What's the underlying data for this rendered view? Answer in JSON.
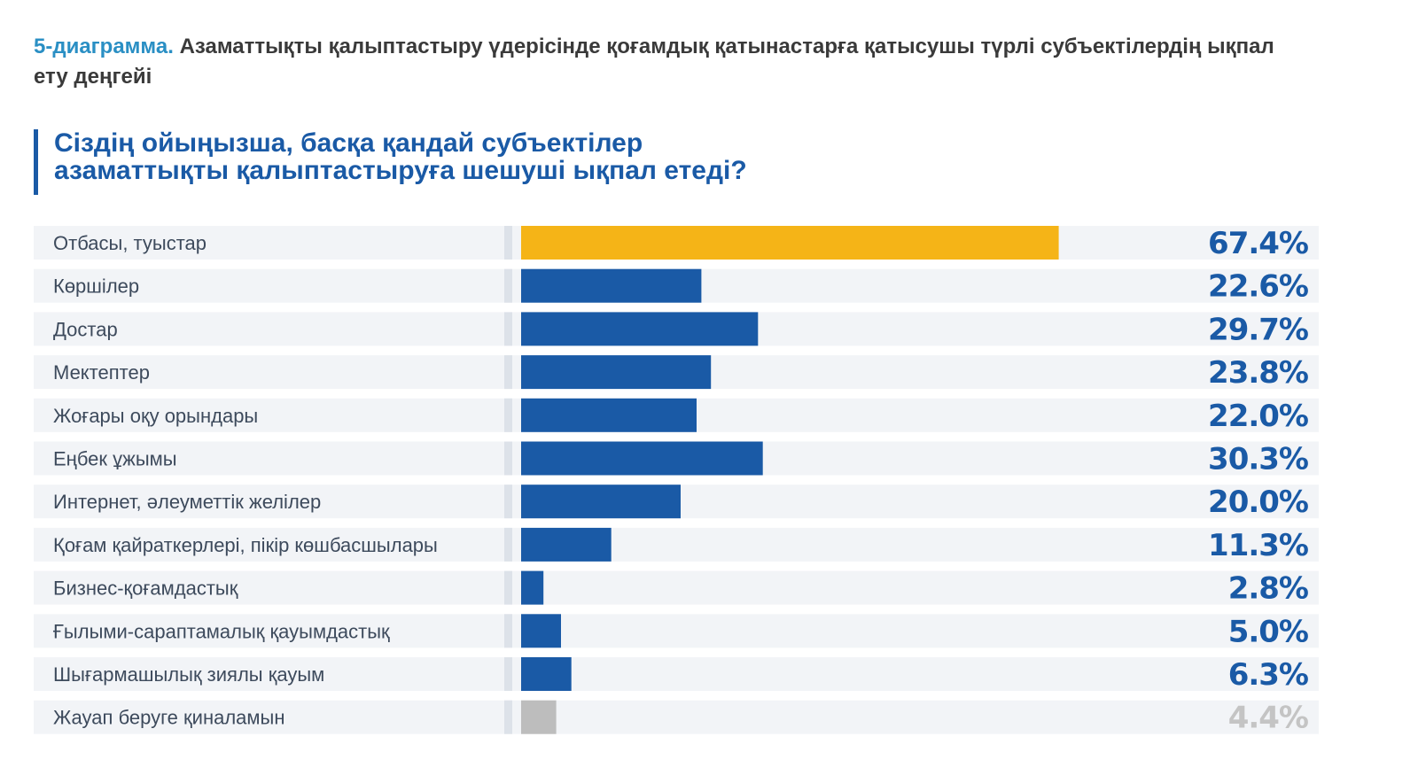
{
  "caption": {
    "number": "5-диаграмма.",
    "text": "Азаматтықты қалыптастыру үдерісінде қоғамдық қатынастарға қатысушы түрлі субъектілердің ықпал ету деңгейі"
  },
  "question": {
    "line1": "Сіздің ойыңызша, басқа қандай субъектілер",
    "line2": "азаматтықты қалыптастыруға шешуші ықпал етеді?"
  },
  "colors": {
    "highlight": "#f5b417",
    "primary": "#1a5aa6",
    "neutral": "#bdbdbd",
    "row_bg": "#f2f4f7",
    "value_text": "#1a5aa6",
    "value_text_neutral": "#c4c4c4"
  },
  "chart_data": {
    "type": "bar",
    "orientation": "horizontal",
    "unit": "%",
    "xlim": [
      0,
      100
    ],
    "grid": false,
    "categories": [
      "Отбасы, туыстар",
      "Көршілер",
      "Достар",
      "Мектептер",
      "Жоғары оқу орындары",
      "Еңбек ұжымы",
      "Интернет, әлеуметтік желілер",
      "Қоғам қайраткерлері, пікір көшбасшылары",
      "Бизнес-қоғамдастық",
      "Ғылыми-сараптамалық қауымдастық",
      "Шығармашылық зиялы қауым",
      "Жауап беруге қиналамын"
    ],
    "values": [
      67.4,
      22.6,
      29.7,
      23.8,
      22.0,
      30.3,
      20.0,
      11.3,
      2.8,
      5.0,
      6.3,
      4.4
    ],
    "value_labels": [
      "67.4%",
      "22.6%",
      "29.7%",
      "23.8%",
      "22.0%",
      "30.3%",
      "20.0%",
      "11.3%",
      "2.8%",
      "5.0%",
      "6.3%",
      "4.4%"
    ],
    "bar_colors": [
      "highlight",
      "primary",
      "primary",
      "primary",
      "primary",
      "primary",
      "primary",
      "primary",
      "primary",
      "primary",
      "primary",
      "neutral"
    ]
  }
}
